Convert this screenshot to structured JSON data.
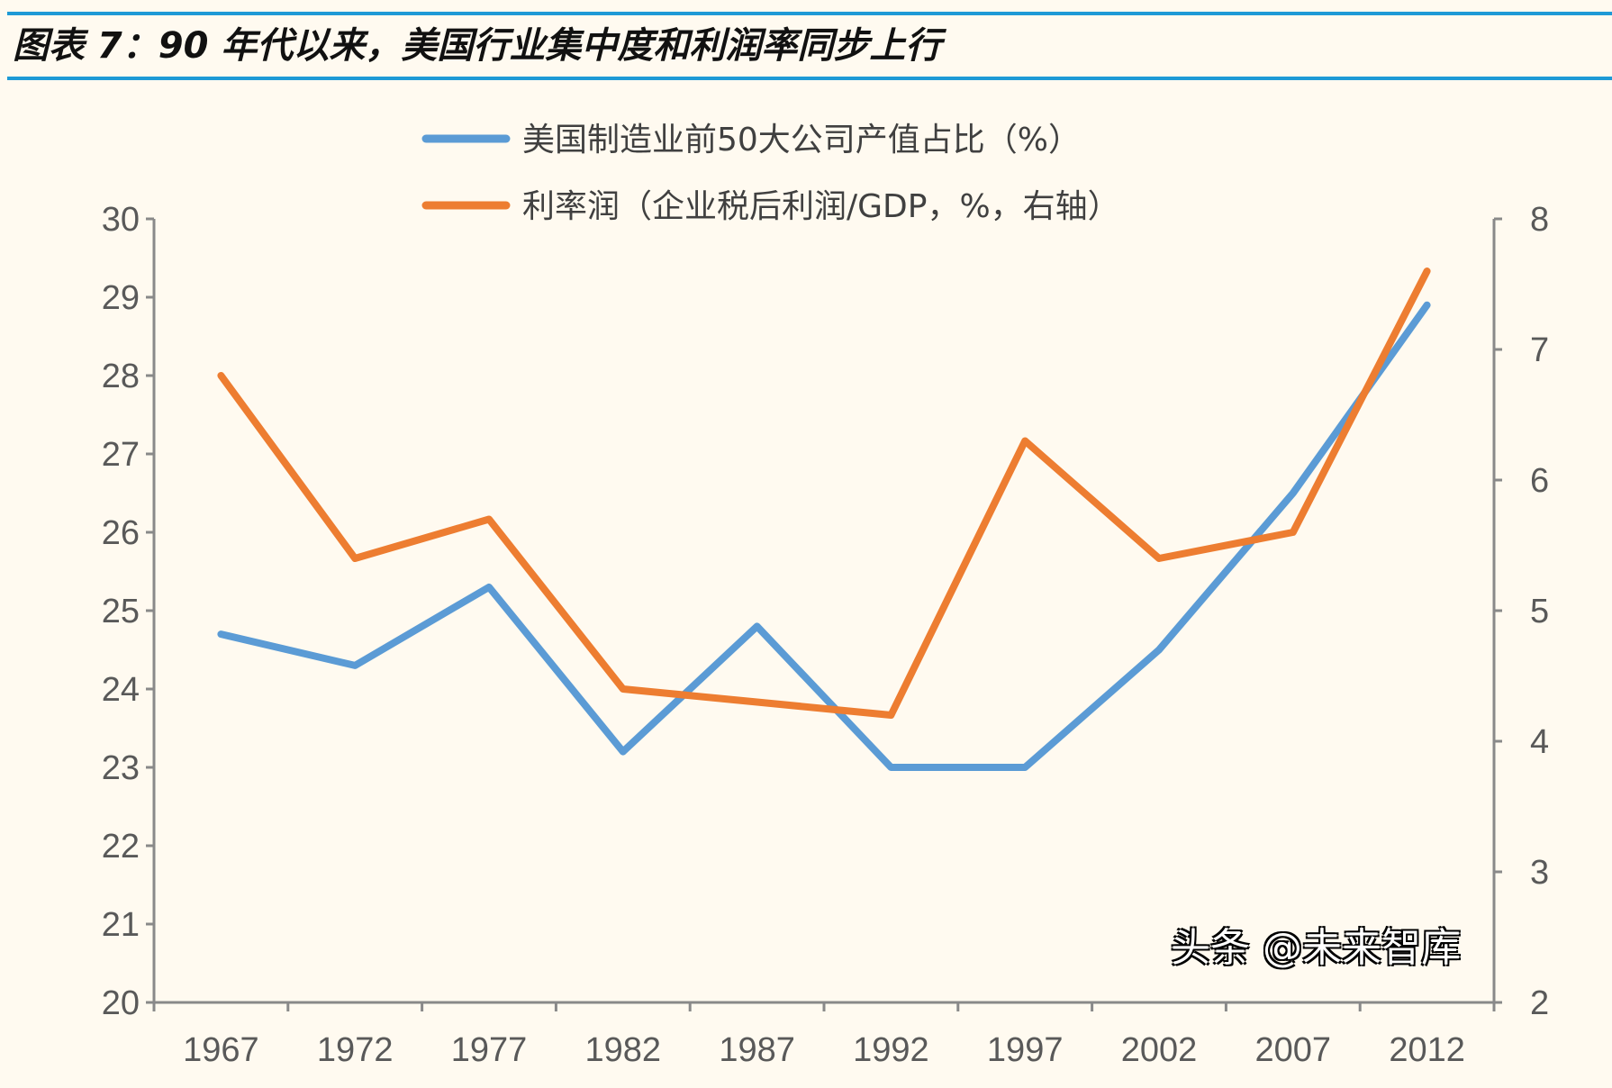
{
  "title": "图表 7：90 年代以来，美国行业集中度和利润率同步上行",
  "colors": {
    "rule": "#1e9ad6",
    "background": "#fffaf0",
    "series1": "#5b9bd5",
    "series2": "#ed7d31",
    "axis": "#898989"
  },
  "chart_data": {
    "type": "line",
    "title": "",
    "categories": [
      "1967",
      "1972",
      "1977",
      "1982",
      "1987",
      "1992",
      "1997",
      "2002",
      "2007",
      "2012"
    ],
    "series": [
      {
        "name": "美国制造业前50大公司产值占比（%）",
        "axis": "left",
        "color": "#5b9bd5",
        "values": [
          24.7,
          24.3,
          25.3,
          23.2,
          24.8,
          23.0,
          23.0,
          24.5,
          26.5,
          28.9
        ]
      },
      {
        "name": "利率润（企业税后利润/GDP，%，右轴）",
        "axis": "right",
        "color": "#ed7d31",
        "values": [
          6.8,
          5.4,
          5.7,
          4.4,
          4.3,
          4.2,
          6.3,
          5.4,
          5.6,
          7.6
        ]
      }
    ],
    "y_left": {
      "range": [
        20,
        30
      ],
      "ticks": [
        "20",
        "21",
        "22",
        "23",
        "24",
        "25",
        "26",
        "27",
        "28",
        "29",
        "30"
      ]
    },
    "y_right": {
      "range": [
        2,
        8
      ],
      "ticks": [
        "2",
        "3",
        "4",
        "5",
        "6",
        "7",
        "8"
      ]
    },
    "grid": false,
    "legend_position": "top"
  },
  "watermark": "头条 @未来智库"
}
